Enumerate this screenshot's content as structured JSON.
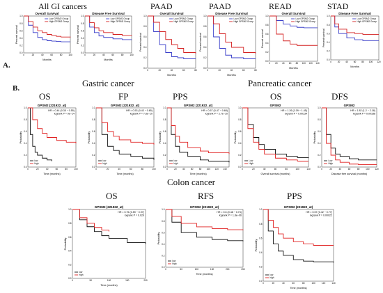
{
  "sections": {
    "a": "A.",
    "b": "B."
  },
  "headings": {
    "all_gi": "All GI cancers",
    "paad1": "PAAD",
    "paad2": "PAAD",
    "read": "READ",
    "stad": "STAD",
    "gastric": "Gastric cancer",
    "pancreatic": "Pancreatic cancer",
    "colon": "Colon cancer",
    "g_os": "OS",
    "g_fp": "FP",
    "g_pps": "PPS",
    "p_os": "OS",
    "p_dfs": "DFS",
    "c_os": "OS",
    "c_rfs": "RFS",
    "c_pps": "PPS"
  },
  "colors": {
    "low": "#3a3fc9",
    "high": "#d42020",
    "black": "#111111",
    "red": "#e02020",
    "grey": "#777777"
  },
  "chart_data": [
    {
      "id": "a1",
      "type": "line",
      "title": "Overall Survival",
      "xlabel": "Months",
      "ylabel": "Percent survival",
      "xlim": [
        0,
        100
      ],
      "ylim": [
        0,
        1
      ],
      "legend": [
        "Low GPSM2 Group",
        "High GPSM2 Group"
      ],
      "stats": "",
      "series": [
        {
          "name": "Low GPSM2 Group",
          "color": "low",
          "x": [
            0,
            10,
            20,
            30,
            40,
            50,
            60,
            70,
            80,
            100
          ],
          "y": [
            1,
            0.75,
            0.55,
            0.42,
            0.36,
            0.33,
            0.32,
            0.31,
            0.3,
            0.3
          ]
        },
        {
          "name": "High GPSM2 Group",
          "color": "high",
          "x": [
            0,
            10,
            20,
            30,
            40,
            50,
            60,
            70,
            80,
            100
          ],
          "y": [
            1,
            0.85,
            0.7,
            0.6,
            0.55,
            0.5,
            0.47,
            0.45,
            0.43,
            0.42
          ]
        }
      ]
    },
    {
      "id": "a2",
      "type": "line",
      "title": "Disease Free Survival",
      "xlabel": "Months",
      "ylabel": "Percent survival",
      "xlim": [
        0,
        100
      ],
      "ylim": [
        0,
        1
      ],
      "legend": [
        "Low GPSM2 Group",
        "High GPSM2 Group"
      ],
      "stats": "",
      "series": [
        {
          "name": "Low GPSM2 Group",
          "color": "low",
          "x": [
            0,
            10,
            20,
            30,
            40,
            60,
            80,
            100
          ],
          "y": [
            1,
            0.7,
            0.55,
            0.46,
            0.42,
            0.38,
            0.36,
            0.35
          ]
        },
        {
          "name": "High GPSM2 Group",
          "color": "high",
          "x": [
            0,
            10,
            20,
            30,
            40,
            60,
            80,
            100
          ],
          "y": [
            1,
            0.82,
            0.68,
            0.6,
            0.55,
            0.5,
            0.47,
            0.46
          ]
        }
      ]
    },
    {
      "id": "a3",
      "type": "line",
      "title": "Overall Survival",
      "xlabel": "Months",
      "ylabel": "Percent survival",
      "xlim": [
        0,
        80
      ],
      "ylim": [
        0,
        1
      ],
      "legend": [
        "Low GPSM2 Group",
        "High GPSM2 Group"
      ],
      "stats": "",
      "series": [
        {
          "name": "Low GPSM2 Group",
          "color": "low",
          "x": [
            0,
            10,
            20,
            30,
            40,
            50,
            60,
            80
          ],
          "y": [
            1,
            0.7,
            0.45,
            0.3,
            0.22,
            0.2,
            0.18,
            0.18
          ]
        },
        {
          "name": "High GPSM2 Group",
          "color": "high",
          "x": [
            0,
            10,
            20,
            30,
            40,
            50,
            60,
            80
          ],
          "y": [
            1,
            0.88,
            0.7,
            0.55,
            0.45,
            0.38,
            0.3,
            0.28
          ]
        }
      ]
    },
    {
      "id": "a4",
      "type": "line",
      "title": "Disease Free Survival",
      "xlabel": "Months",
      "ylabel": "Percent survival",
      "xlim": [
        0,
        80
      ],
      "ylim": [
        0,
        1
      ],
      "legend": [
        "Low GPSM2 Group",
        "High GPSM2 Group"
      ],
      "stats": "",
      "series": [
        {
          "name": "Low GPSM2 Group",
          "color": "low",
          "x": [
            0,
            10,
            20,
            30,
            40,
            60,
            80
          ],
          "y": [
            1,
            0.6,
            0.38,
            0.25,
            0.2,
            0.18,
            0.18
          ]
        },
        {
          "name": "High GPSM2 Group",
          "color": "high",
          "x": [
            0,
            10,
            20,
            30,
            40,
            60,
            80
          ],
          "y": [
            1,
            0.85,
            0.66,
            0.5,
            0.4,
            0.3,
            0.28
          ]
        }
      ]
    },
    {
      "id": "a5",
      "type": "line",
      "title": "Overall Survival",
      "xlabel": "Months",
      "ylabel": "Percent survival",
      "xlim": [
        0,
        140
      ],
      "ylim": [
        0,
        1
      ],
      "legend": [
        "Low GPSM2 Group",
        "High GPSM2 Group"
      ],
      "stats": "",
      "series": [
        {
          "name": "Low GPSM2 Group",
          "color": "low",
          "x": [
            0,
            20,
            40,
            60,
            80,
            100,
            140
          ],
          "y": [
            1,
            0.9,
            0.82,
            0.78,
            0.75,
            0.74,
            0.74
          ]
        },
        {
          "name": "High GPSM2 Group",
          "color": "high",
          "x": [
            0,
            20,
            40,
            60,
            80,
            100,
            140
          ],
          "y": [
            1,
            0.6,
            0.45,
            0.38,
            0.35,
            0.35,
            0.35
          ]
        }
      ]
    },
    {
      "id": "a6",
      "type": "line",
      "title": "Disease Free Survival",
      "xlabel": "Months",
      "ylabel": "Percent survival",
      "xlim": [
        0,
        120
      ],
      "ylim": [
        0,
        1
      ],
      "legend": [
        "Low GPSM2 Group",
        "High GPSM2 Group"
      ],
      "stats": "",
      "series": [
        {
          "name": "Low GPSM2 Group",
          "color": "low",
          "x": [
            0,
            10,
            20,
            40,
            60,
            80,
            120
          ],
          "y": [
            1,
            0.75,
            0.6,
            0.5,
            0.46,
            0.44,
            0.44
          ]
        },
        {
          "name": "High GPSM2 Group",
          "color": "high",
          "x": [
            0,
            10,
            20,
            40,
            60,
            80,
            120
          ],
          "y": [
            1,
            0.82,
            0.7,
            0.62,
            0.6,
            0.58,
            0.58
          ]
        }
      ]
    },
    {
      "id": "b1",
      "type": "line",
      "title": "GPSM2 (221922_at)",
      "xlabel": "Time (months)",
      "ylabel": "Probability",
      "xlim": [
        0,
        100
      ],
      "ylim": [
        0,
        1
      ],
      "legend": [
        "low",
        "high"
      ],
      "stats": "HR = 0.44 (0.35 − 0.55)\nlogrank P = 9e−14",
      "series": [
        {
          "name": "low",
          "color": "black",
          "x": [
            0,
            5,
            10,
            15,
            20,
            30,
            40,
            50
          ],
          "y": [
            1,
            0.55,
            0.35,
            0.25,
            0.2,
            0.15,
            0.12,
            0.1
          ]
        },
        {
          "name": "high",
          "color": "red",
          "x": [
            0,
            10,
            20,
            30,
            40,
            60,
            80,
            100
          ],
          "y": [
            1,
            0.8,
            0.65,
            0.57,
            0.5,
            0.45,
            0.42,
            0.4
          ]
        }
      ]
    },
    {
      "id": "b2",
      "type": "line",
      "title": "GPSM2 (221922_at)",
      "xlabel": "Time (months)",
      "ylabel": "Probability",
      "xlim": [
        0,
        100
      ],
      "ylim": [
        0,
        1
      ],
      "legend": [
        "low",
        "high"
      ],
      "stats": "HR = 0.53 (0.43 − 0.65)\nlogrank P = 7.8e−10",
      "series": [
        {
          "name": "low",
          "color": "black",
          "x": [
            0,
            10,
            20,
            30,
            40,
            60,
            80,
            100
          ],
          "y": [
            1,
            0.55,
            0.35,
            0.28,
            0.22,
            0.18,
            0.15,
            0.12
          ]
        },
        {
          "name": "high",
          "color": "red",
          "x": [
            0,
            10,
            20,
            30,
            40,
            60,
            80,
            100
          ],
          "y": [
            1,
            0.75,
            0.6,
            0.52,
            0.46,
            0.42,
            0.4,
            0.38
          ]
        }
      ]
    },
    {
      "id": "b3",
      "type": "line",
      "title": "GPSM2 (221922_at)",
      "xlabel": "Time (months)",
      "ylabel": "Probability",
      "xlim": [
        0,
        150
      ],
      "ylim": [
        0,
        1
      ],
      "legend": [
        "low",
        "high"
      ],
      "stats": "HR = 0.57 (0.47 − 0.68)\nlogrank P = 2.7e−10",
      "series": [
        {
          "name": "low",
          "color": "black",
          "x": [
            0,
            10,
            20,
            30,
            50,
            80,
            100,
            150
          ],
          "y": [
            1,
            0.55,
            0.35,
            0.25,
            0.18,
            0.12,
            0.1,
            0.08
          ]
        },
        {
          "name": "high",
          "color": "red",
          "x": [
            0,
            10,
            20,
            30,
            50,
            80,
            100,
            150
          ],
          "y": [
            1,
            0.7,
            0.52,
            0.42,
            0.33,
            0.27,
            0.24,
            0.22
          ]
        }
      ]
    },
    {
      "id": "b4",
      "type": "line",
      "title": "GPSM2",
      "xlabel": "Overall survival (months)",
      "ylabel": "Probability",
      "xlim": [
        0,
        120
      ],
      "ylim": [
        0,
        1
      ],
      "legend": [
        "Low",
        "High"
      ],
      "stats": "HR = 1.26 (1.09 − 1.45)\nlogrank P = 0.00134",
      "series": [
        {
          "name": "Low",
          "color": "black",
          "x": [
            0,
            10,
            20,
            30,
            40,
            60,
            80,
            100,
            120
          ],
          "y": [
            1,
            0.72,
            0.5,
            0.38,
            0.3,
            0.22,
            0.18,
            0.16,
            0.15
          ]
        },
        {
          "name": "High",
          "color": "red",
          "x": [
            0,
            10,
            20,
            30,
            40,
            60,
            80,
            100,
            120
          ],
          "y": [
            1,
            0.65,
            0.42,
            0.3,
            0.22,
            0.15,
            0.12,
            0.1,
            0.1
          ]
        }
      ]
    },
    {
      "id": "b5",
      "type": "line",
      "title": "GPSM2",
      "xlabel": "Disease free survival (months)",
      "ylabel": "Probability",
      "xlim": [
        0,
        120
      ],
      "ylim": [
        0,
        1
      ],
      "legend": [
        "Low",
        "High"
      ],
      "stats": "HR = 1.82 (1.2 − 2.18)\nlogrank P = 0.00188",
      "series": [
        {
          "name": "Low",
          "color": "black",
          "x": [
            0,
            10,
            20,
            30,
            40,
            60,
            80,
            120
          ],
          "y": [
            1,
            0.55,
            0.32,
            0.22,
            0.18,
            0.14,
            0.12,
            0.12
          ]
        },
        {
          "name": "High",
          "color": "red",
          "x": [
            0,
            10,
            20,
            30,
            40,
            60,
            80,
            120
          ],
          "y": [
            1,
            0.4,
            0.2,
            0.12,
            0.08,
            0.05,
            0.04,
            0.04
          ]
        }
      ]
    },
    {
      "id": "c1",
      "type": "line",
      "title": "GPSM2 (221922_at)",
      "xlabel": "Time (months)",
      "ylabel": "Probability",
      "xlim": [
        0,
        200
      ],
      "ylim": [
        0,
        1
      ],
      "legend": [
        "low",
        "high"
      ],
      "stats": "HR = 0.76 (0.59 − 0.97)\nlogrank P = 0.029",
      "series": [
        {
          "name": "low",
          "color": "black",
          "x": [
            0,
            20,
            40,
            60,
            80,
            100,
            150,
            200
          ],
          "y": [
            1,
            0.85,
            0.75,
            0.68,
            0.62,
            0.58,
            0.52,
            0.5
          ]
        },
        {
          "name": "high",
          "color": "red",
          "x": [
            0,
            20,
            40,
            60,
            80,
            100
          ],
          "y": [
            1,
            0.88,
            0.8,
            0.74,
            0.7,
            0.68
          ]
        }
      ]
    },
    {
      "id": "c2",
      "type": "line",
      "title": "GPSM2 (221922_at)",
      "xlabel": "Time (months)",
      "ylabel": "Probability",
      "xlim": [
        0,
        250
      ],
      "ylim": [
        0,
        1
      ],
      "legend": [
        "low",
        "high"
      ],
      "stats": "HR = 0.6 (0.48 − 0.74)\nlogrank P = 1.8e−06",
      "series": [
        {
          "name": "low",
          "color": "black",
          "x": [
            0,
            20,
            50,
            100,
            150,
            200,
            250
          ],
          "y": [
            1,
            0.78,
            0.6,
            0.52,
            0.48,
            0.46,
            0.45
          ]
        },
        {
          "name": "high",
          "color": "red",
          "x": [
            0,
            20,
            50,
            100,
            150,
            200,
            250
          ],
          "y": [
            1,
            0.88,
            0.76,
            0.7,
            0.67,
            0.65,
            0.64
          ]
        }
      ]
    },
    {
      "id": "c3",
      "type": "line",
      "title": "GPSM2 (221922_at)",
      "xlabel": "Time (months)",
      "ylabel": "Probability",
      "xlim": [
        0,
        140
      ],
      "ylim": [
        0,
        1
      ],
      "legend": [
        "low",
        "high"
      ],
      "stats": "HR = 0.57 (0.42 − 0.77)\nlogrank P = 0.00022",
      "series": [
        {
          "name": "low",
          "color": "black",
          "x": [
            0,
            10,
            20,
            30,
            40,
            60,
            80,
            100,
            140
          ],
          "y": [
            1,
            0.7,
            0.52,
            0.42,
            0.36,
            0.3,
            0.28,
            0.27,
            0.26
          ]
        },
        {
          "name": "high",
          "color": "red",
          "x": [
            0,
            10,
            20,
            30,
            40,
            60,
            80,
            100,
            140
          ],
          "y": [
            1,
            0.85,
            0.75,
            0.66,
            0.6,
            0.55,
            0.52,
            0.5,
            0.5
          ]
        }
      ]
    }
  ]
}
